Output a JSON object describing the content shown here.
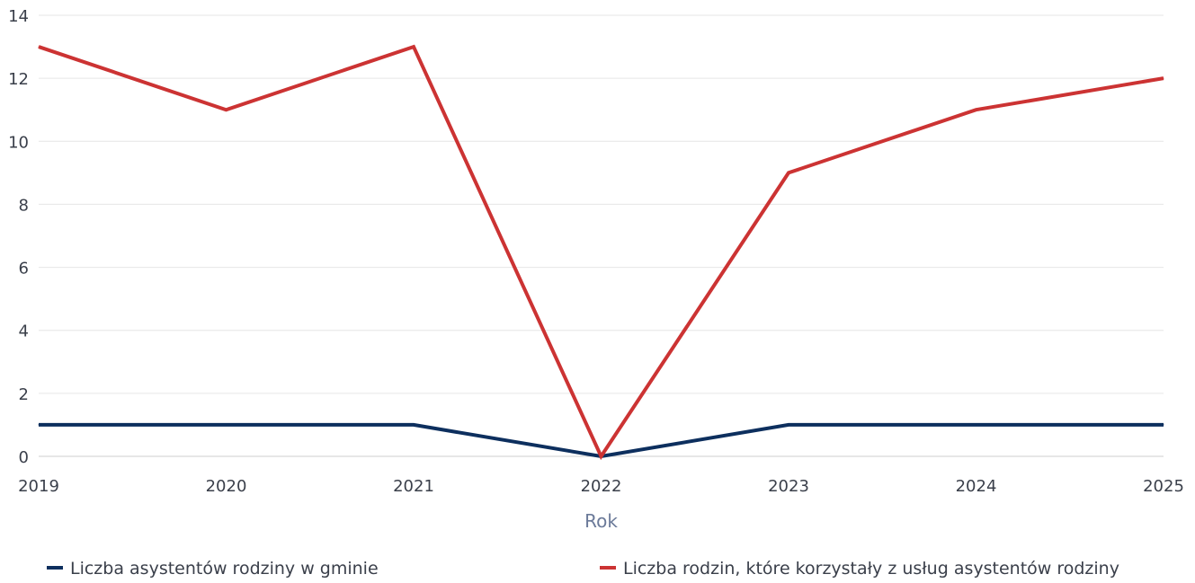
{
  "chart_data": {
    "type": "line",
    "x": [
      "2019",
      "2020",
      "2021",
      "2022",
      "2023",
      "2024",
      "2025"
    ],
    "xlabel": "Rok",
    "ylabel": "",
    "ylim": [
      0,
      14
    ],
    "yticks": [
      "0",
      "2",
      "4",
      "6",
      "8",
      "10",
      "12",
      "14"
    ],
    "grid": true,
    "legend": "bottom",
    "series": [
      {
        "name": "Liczba asystentów rodziny w gminie",
        "color": "#0d2f5e",
        "values": [
          1,
          1,
          1,
          0,
          1,
          1,
          1
        ]
      },
      {
        "name": "Liczba rodzin, które korzystały z usług asystentów rodziny",
        "color": "#cc3333",
        "values": [
          13,
          11,
          13,
          0,
          9,
          11,
          12
        ]
      }
    ]
  }
}
